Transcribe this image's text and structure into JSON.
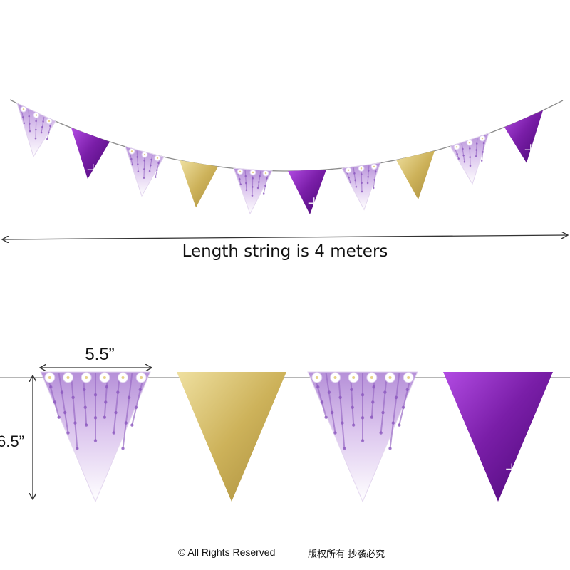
{
  "caption": "Length string is 4 meters",
  "dimensions": {
    "width": "5.5”",
    "height": "6.5”"
  },
  "footer": {
    "copyright": "© All Rights Reserved",
    "cn_notice": "版权所有 抄袭必究"
  },
  "garland": {
    "pennant_count": 10,
    "pattern": [
      "floral",
      "purple",
      "floral",
      "gold",
      "floral",
      "purple",
      "floral",
      "gold",
      "floral",
      "purple"
    ]
  },
  "closeup": {
    "pattern": [
      "floral",
      "gold",
      "floral",
      "purple"
    ]
  },
  "colors": {
    "purple": "#7a1ea8",
    "purple_light": "#b04ae0",
    "gold": "#cdb25a",
    "gold_light": "#efe0a0",
    "lavender": "#c9a8df",
    "string": "#8a8a8a"
  }
}
